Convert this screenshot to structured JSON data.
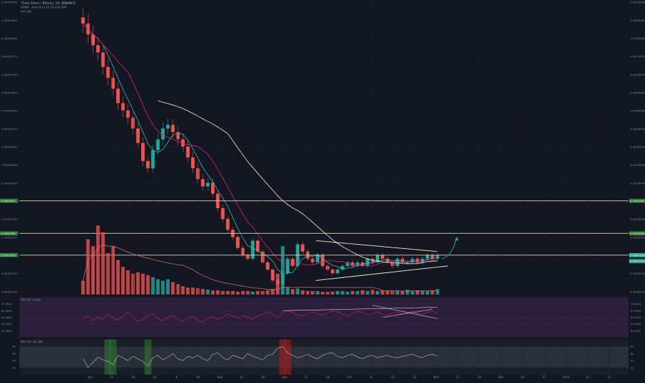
{
  "header": {
    "title": "Theta Token / Bitcoin, 1D, BINANCE",
    "ma_label": "SDMA · Sens 8,13,21,55,100,200",
    "vol_label": "Vol (20)"
  },
  "colors": {
    "background": "#131722",
    "up": "#26a69a",
    "down": "#ef5350",
    "ma_fast": "#2ec4b6",
    "ma_mid": "#e91e8c",
    "ma_slow": "#fffbc0",
    "trendline": "#fffbc0",
    "hline": "#fffbc0",
    "rsi_line": "#c2185b",
    "rsi_bg": "#2a1f3d",
    "mfi_line": "#b0b0b0",
    "mfi_bg": "#2b2f38",
    "arrow": "#26a69a",
    "price_tag": "#26a69a"
  },
  "chart_data": {
    "type": "candlestick",
    "title": "Theta Token / Bitcoin, 1D, BINANCE",
    "price_scale": [
      "0.00000900",
      "0.00000850",
      "0.00000800",
      "0.00000750",
      "0.00000700",
      "0.00000650",
      "0.00000600",
      "0.00000550",
      "0.00000500",
      "0.00000450",
      "0.00000400",
      "0.00000350",
      "0.00000300",
      "0.00000250",
      "0.00000200",
      "0.00000150",
      "0.00000100"
    ],
    "ylim": [
      9.5e-07,
      9.05e-06
    ],
    "horizontal_levels": [
      {
        "value": 3.5e-06,
        "label": "0.00000350"
      },
      {
        "value": 2.6e-06,
        "label": "0.00000260"
      },
      {
        "value": 2e-06,
        "label": "0.00000200"
      }
    ],
    "x_labels": [
      "Jun",
      "11",
      "18",
      "Jul",
      "9",
      "16",
      "Aug",
      "13",
      "20",
      "Sep",
      "17",
      "24",
      "Oct",
      "8",
      "15",
      "22",
      "Nov",
      "12",
      "19",
      "Dec",
      "10",
      "17",
      "2019",
      "14",
      "21"
    ],
    "series": [
      {
        "name": "price",
        "values": [
          8.4e-06,
          8.1e-06,
          7.8e-06,
          7.6e-06,
          7.2e-06,
          6.9e-06,
          6.6e-06,
          6.2e-06,
          6e-06,
          5.8e-06,
          5.5e-06,
          5.1e-06,
          4.6e-06,
          4.4e-06,
          4.9e-06,
          5.2e-06,
          5.5e-06,
          5.6e-06,
          5.4e-06,
          5.2e-06,
          5e-06,
          4.7e-06,
          4.4e-06,
          4.1e-06,
          3.9e-06,
          4e-06,
          3.7e-06,
          3.3e-06,
          3e-06,
          2.7e-06,
          2.5e-06,
          2.2e-06,
          2e-06,
          1.9e-06,
          2.4e-06,
          2.1e-06,
          1.8e-06,
          1.6e-06,
          1.3e-06,
          1.2e-06,
          1.5e-06,
          1.9e-06,
          1.7e-06,
          2.3e-06,
          2.1e-06,
          1.9e-06,
          1.8e-06,
          2e-06,
          1.7e-06,
          1.6e-06,
          1.5e-06,
          1.6e-06,
          1.7e-06,
          1.8e-06,
          1.7e-06,
          1.8e-06,
          1.7e-06,
          1.9e-06,
          1.8e-06,
          2e-06,
          1.9e-06,
          1.8e-06,
          1.7e-06,
          1.9e-06,
          1.8e-06,
          1.8e-06,
          1.9e-06,
          1.8e-06,
          1.9e-06,
          2e-06,
          1.9e-06,
          2e-06
        ]
      },
      {
        "name": "volume",
        "values": [
          0.2,
          0.8,
          0.7,
          1.0,
          0.9,
          0.6,
          0.7,
          0.5,
          0.4,
          0.35,
          0.3,
          0.32,
          0.3,
          0.28,
          0.25,
          0.22,
          0.2,
          0.22,
          0.18,
          0.15,
          0.12,
          0.1,
          0.1,
          0.09,
          0.08,
          0.07,
          0.06,
          0.06,
          0.05,
          0.05,
          0.05,
          0.04,
          0.05,
          0.05,
          0.04,
          0.05,
          0.05,
          0.06,
          0.08,
          0.3,
          0.7,
          0.1,
          0.08,
          0.09,
          0.06,
          0.05,
          0.05,
          0.05,
          0.04,
          0.04,
          0.04,
          0.05,
          0.05,
          0.04,
          0.05,
          0.05,
          0.06,
          0.05,
          0.07,
          0.05,
          0.06,
          0.05,
          0.05,
          0.06,
          0.05,
          0.07,
          0.05,
          0.06,
          0.05,
          0.05,
          0.06,
          0.08
        ]
      },
      {
        "name": "RSI (14, close)",
        "values": [
          48,
          52,
          45,
          50,
          47,
          55,
          49,
          46,
          52,
          58,
          50,
          44,
          47,
          52,
          56,
          48,
          45,
          50,
          53,
          47,
          44,
          49,
          52,
          46,
          43,
          48,
          51,
          47,
          50,
          55,
          52,
          49,
          53,
          50,
          47,
          52,
          55,
          58,
          54,
          50,
          56,
          60,
          57,
          54,
          52,
          56,
          58,
          55,
          53,
          57,
          60,
          58,
          55,
          52,
          56,
          59,
          57,
          54,
          56,
          58,
          55,
          53,
          56,
          58,
          55,
          57,
          59,
          56,
          54,
          57,
          59,
          56
        ]
      },
      {
        "name": "MFI (14, 20, 80)",
        "values": [
          45,
          20,
          35,
          50,
          42,
          38,
          28,
          55,
          48,
          40,
          52,
          45,
          38,
          25,
          48,
          55,
          42,
          50,
          60,
          45,
          40,
          52,
          48,
          55,
          45,
          40,
          58,
          62,
          48,
          42,
          55,
          50,
          45,
          60,
          52,
          48,
          42,
          55,
          58,
          75,
          80,
          62,
          55,
          48,
          52,
          58,
          50,
          45,
          55,
          60,
          62,
          52,
          48,
          55,
          58,
          50,
          45,
          52,
          55,
          48,
          52,
          55,
          50,
          48,
          52,
          55,
          58,
          52,
          48,
          55,
          58,
          52
        ]
      }
    ],
    "price_tags": [
      {
        "value": 2e-06,
        "label": "0.00000200"
      },
      {
        "value": 1.95e-06,
        "label": "0.00000195"
      }
    ]
  },
  "rsi_panel": {
    "label": "RSI (14, close)",
    "scale": [
      "70.0000",
      "60.0000",
      "50.0000",
      "40.0000",
      "30.0000"
    ]
  },
  "mfi_panel": {
    "label": "MFI (14, 20, 80)",
    "scale": [
      "80",
      "60",
      "40",
      "20"
    ]
  }
}
